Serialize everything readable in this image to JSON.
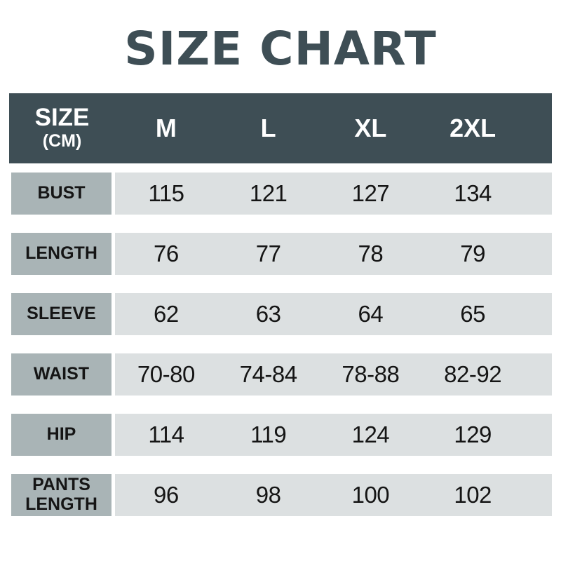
{
  "title": "SIZE CHART",
  "header": {
    "size_label": "SIZE",
    "unit_label": "(CM)"
  },
  "chart_data": {
    "type": "table",
    "title": "SIZE CHART",
    "unit": "CM",
    "columns": [
      "M",
      "L",
      "XL",
      "2XL"
    ],
    "rows": [
      {
        "label": "BUST",
        "values": [
          "115",
          "121",
          "127",
          "134"
        ]
      },
      {
        "label": "LENGTH",
        "values": [
          "76",
          "77",
          "78",
          "79"
        ]
      },
      {
        "label": "SLEEVE",
        "values": [
          "62",
          "63",
          "64",
          "65"
        ]
      },
      {
        "label": "WAIST",
        "values": [
          "70-80",
          "74-84",
          "78-88",
          "82-92"
        ]
      },
      {
        "label": "HIP",
        "values": [
          "114",
          "119",
          "124",
          "129"
        ]
      },
      {
        "label": "PANTS LENGTH",
        "values": [
          "96",
          "98",
          "100",
          "102"
        ]
      }
    ]
  },
  "colors": {
    "title_text": "#3E4E55",
    "header_bg": "#3E4E55",
    "header_text": "#FFFFFF",
    "row_label_bg": "#A9B4B6",
    "row_values_bg": "#DCE0E1",
    "cell_text": "#151515",
    "page_bg": "#FFFFFF"
  }
}
